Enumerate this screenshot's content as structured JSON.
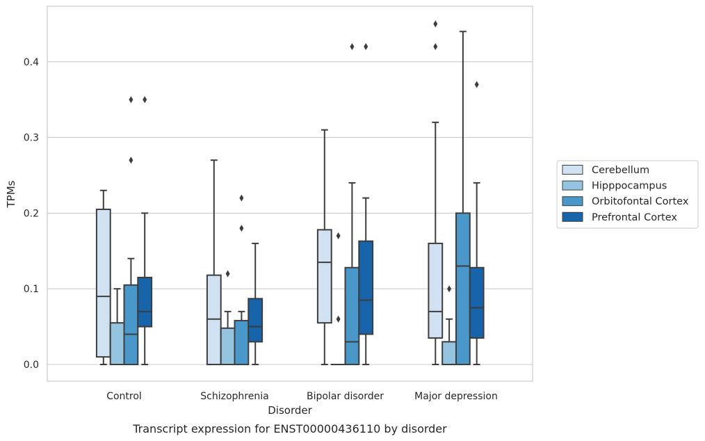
{
  "chart_data": {
    "type": "box",
    "caption": "Transcript expression for ENST00000436110 by disorder",
    "xlabel": "Disorder",
    "ylabel": "TPMs",
    "ylim": [
      -0.022,
      0.474
    ],
    "yticks": [
      0.0,
      0.1,
      0.2,
      0.3,
      0.4
    ],
    "ytick_labels": [
      "0.0",
      "0.1",
      "0.2",
      "0.3",
      "0.4"
    ],
    "grid": "horizontal",
    "legend_position": "right",
    "categories": [
      "Control",
      "Schizophrenia",
      "Bipolar disorder",
      "Major depression"
    ],
    "series": [
      {
        "name": "Cerebellum",
        "color": "#d0e1f2",
        "boxes": [
          {
            "whislo": 0.0,
            "q1": 0.01,
            "med": 0.09,
            "q3": 0.205,
            "whishi": 0.23,
            "fliers": []
          },
          {
            "whislo": 0.0,
            "q1": 0.0,
            "med": 0.06,
            "q3": 0.118,
            "whishi": 0.27,
            "fliers": []
          },
          {
            "whislo": 0.0,
            "q1": 0.055,
            "med": 0.135,
            "q3": 0.178,
            "whishi": 0.31,
            "fliers": []
          },
          {
            "whislo": 0.0,
            "q1": 0.035,
            "med": 0.07,
            "q3": 0.16,
            "whishi": 0.32,
            "fliers": [
              0.42,
              0.45
            ]
          }
        ]
      },
      {
        "name": "Hipppocampus",
        "color": "#94c4df",
        "boxes": [
          {
            "whislo": 0.0,
            "q1": 0.0,
            "med": 0.0,
            "q3": 0.055,
            "whishi": 0.1,
            "fliers": []
          },
          {
            "whislo": 0.0,
            "q1": 0.0,
            "med": 0.0,
            "q3": 0.048,
            "whishi": 0.07,
            "fliers": [
              0.12
            ]
          },
          {
            "whislo": 0.0,
            "q1": 0.0,
            "med": 0.0,
            "q3": 0.0,
            "whishi": 0.0,
            "fliers": [
              0.06,
              0.17
            ]
          },
          {
            "whislo": 0.0,
            "q1": 0.0,
            "med": 0.0,
            "q3": 0.03,
            "whishi": 0.06,
            "fliers": [
              0.1
            ]
          }
        ]
      },
      {
        "name": "Orbitofontal Cortex",
        "color": "#4a98c9",
        "boxes": [
          {
            "whislo": 0.0,
            "q1": 0.0,
            "med": 0.04,
            "q3": 0.105,
            "whishi": 0.14,
            "fliers": [
              0.27,
              0.35
            ]
          },
          {
            "whislo": 0.0,
            "q1": 0.0,
            "med": 0.0,
            "q3": 0.058,
            "whishi": 0.07,
            "fliers": [
              0.18,
              0.22
            ]
          },
          {
            "whislo": 0.0,
            "q1": 0.0,
            "med": 0.03,
            "q3": 0.128,
            "whishi": 0.24,
            "fliers": [
              0.42
            ]
          },
          {
            "whislo": 0.0,
            "q1": 0.0,
            "med": 0.13,
            "q3": 0.2,
            "whishi": 0.44,
            "fliers": []
          }
        ]
      },
      {
        "name": "Prefrontal Cortex",
        "color": "#1764ab",
        "boxes": [
          {
            "whislo": 0.0,
            "q1": 0.05,
            "med": 0.07,
            "q3": 0.115,
            "whishi": 0.2,
            "fliers": [
              0.35
            ]
          },
          {
            "whislo": 0.0,
            "q1": 0.03,
            "med": 0.05,
            "q3": 0.087,
            "whishi": 0.16,
            "fliers": []
          },
          {
            "whislo": 0.0,
            "q1": 0.04,
            "med": 0.085,
            "q3": 0.163,
            "whishi": 0.22,
            "fliers": [
              0.42
            ]
          },
          {
            "whislo": 0.0,
            "q1": 0.035,
            "med": 0.075,
            "q3": 0.128,
            "whishi": 0.24,
            "fliers": [
              0.37
            ]
          }
        ]
      }
    ]
  }
}
